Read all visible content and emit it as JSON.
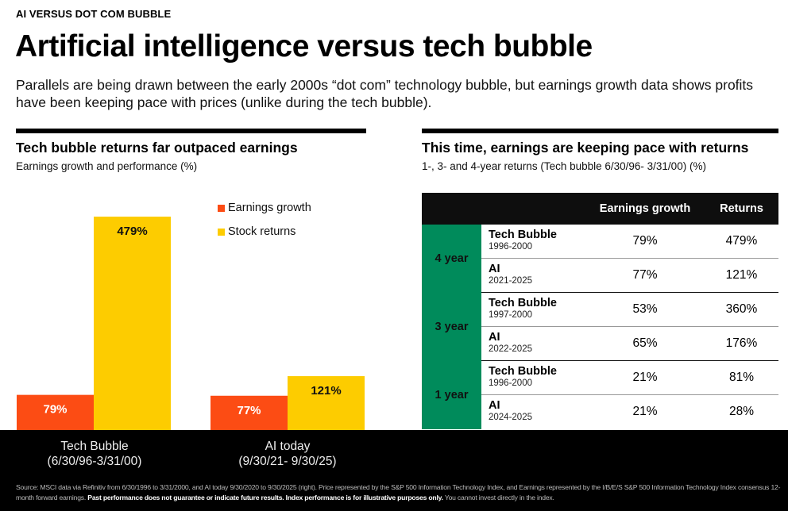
{
  "eyebrow": "AI VERSUS DOT COM BUBBLE",
  "headline": "Artificial intelligence versus tech bubble",
  "dek": "Parallels are being drawn between the early 2000s “dot com” technology bubble, but earnings growth data shows profits have been keeping pace with prices (unlike during the tech bubble).",
  "left_section": {
    "title": "Tech bubble returns far outpaced earnings",
    "subtitle": "Earnings growth and performance (%)"
  },
  "right_section": {
    "title": "This time, earnings are keeping pace with returns",
    "subtitle": "1-, 3- and 4-year returns (Tech bubble 6/30/96- 3/31/00) (%)"
  },
  "colors": {
    "earnings": "#fc4c14",
    "returns": "#fdcc00",
    "group_green": "#008b5b"
  },
  "chart_data": {
    "type": "bar",
    "title": "Tech bubble returns far outpaced earnings",
    "subtitle": "Earnings growth and performance (%)",
    "categories": [
      "Tech Bubble\n(6/30/96-3/31/00)",
      "AI today\n(9/30/21- 9/30/25)"
    ],
    "category_lines": [
      [
        "Tech Bubble",
        "(6/30/96-3/31/00)"
      ],
      [
        "AI today",
        "(9/30/21- 9/30/25)"
      ]
    ],
    "series": [
      {
        "name": "Earnings growth",
        "values": [
          79,
          77
        ],
        "labels": [
          "79%",
          "77%"
        ]
      },
      {
        "name": "Stock returns",
        "values": [
          479,
          121
        ],
        "labels": [
          "479%",
          "121%"
        ]
      }
    ],
    "xlabel": "",
    "ylabel": "",
    "ylim": [
      0,
      479
    ],
    "grid": false,
    "legend": "top-right"
  },
  "table": {
    "headers": [
      "",
      "",
      "Earnings growth",
      "Returns"
    ],
    "groups": [
      {
        "label": "4 year",
        "rows": [
          {
            "name": "Tech Bubble",
            "years": "1996-2000",
            "earnings_growth": "79%",
            "returns": "479%"
          },
          {
            "name": "AI",
            "years": "2021-2025",
            "earnings_growth": "77%",
            "returns": "121%"
          }
        ]
      },
      {
        "label": "3 year",
        "rows": [
          {
            "name": "Tech Bubble",
            "years": "1997-2000",
            "earnings_growth": "53%",
            "returns": "360%"
          },
          {
            "name": "AI",
            "years": "2022-2025",
            "earnings_growth": "65%",
            "returns": "176%"
          }
        ]
      },
      {
        "label": "1 year",
        "rows": [
          {
            "name": "Tech Bubble",
            "years": "1996-2000",
            "earnings_growth": "21%",
            "returns": "81%"
          },
          {
            "name": "AI",
            "years": "2024-2025",
            "earnings_growth": "21%",
            "returns": "28%"
          }
        ]
      }
    ]
  },
  "source": {
    "text": "Source: MSCI data via Refinitiv from 6/30/1996 to 3/31/2000, and AI today 9/30/2020 to 9/30/2025 (right). Price represented by the S&P 500 Information Technology Index, and  Earnings represented by the I/B/E/S S&P 500 Information Technology Index consensus 12-month forward earnings.",
    "disclaimer_bold": "Past performance does not guarantee or indicate future results. Index performance is for illustrative purposes only.",
    "disclaimer_tail": "You cannot invest directly in the index."
  }
}
